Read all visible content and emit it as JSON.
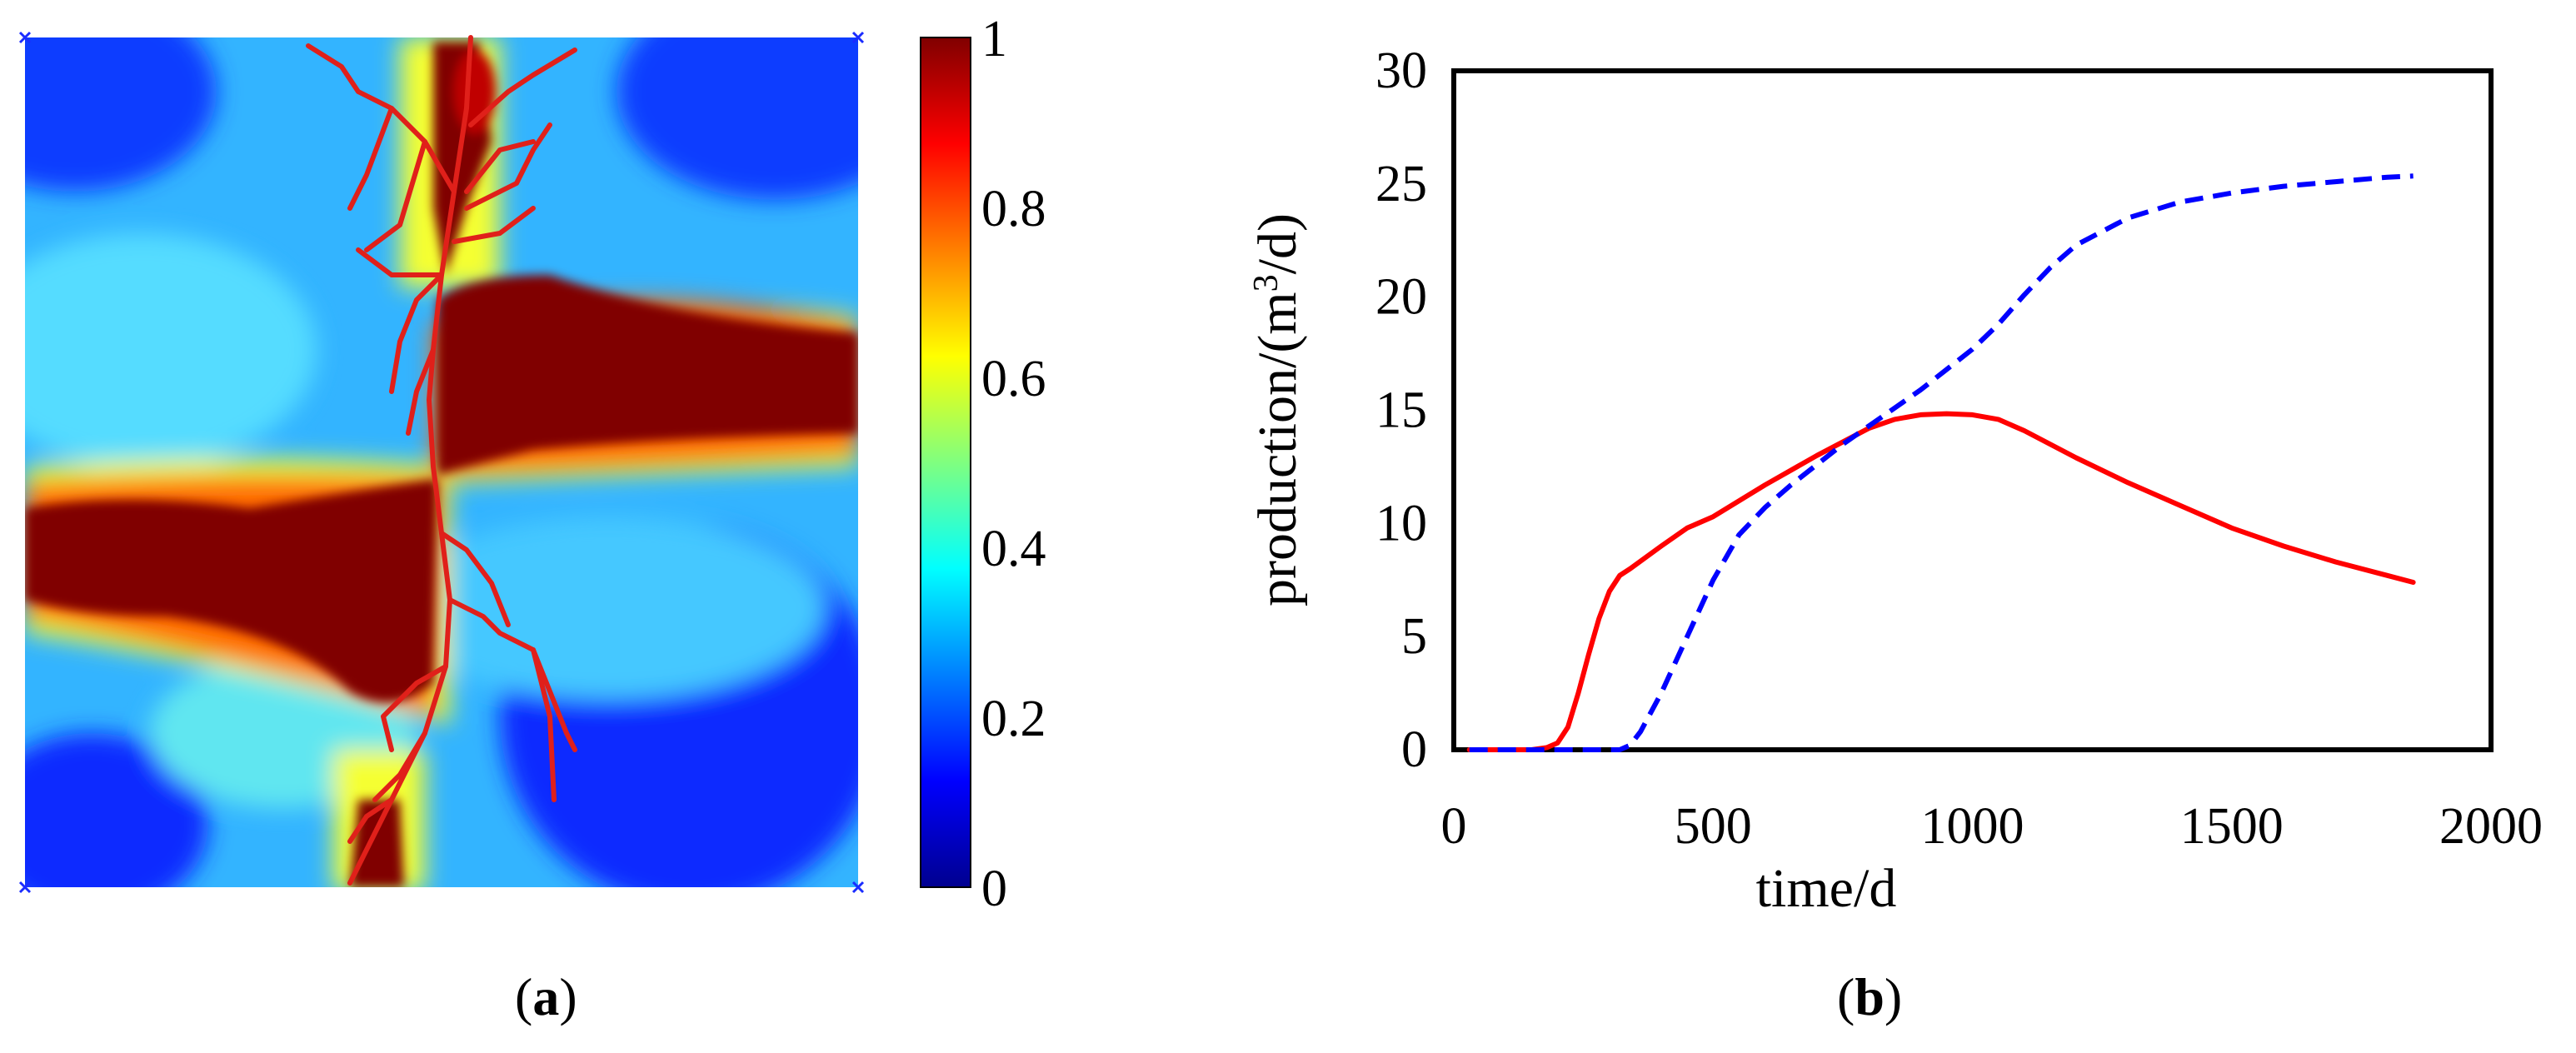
{
  "panel_a": {
    "caption_letter": "a",
    "colormap": "jet",
    "colorbar_ticks": [
      "1",
      "0.8",
      "0.6",
      "0.4",
      "0.2",
      "0"
    ],
    "colorbar_range": [
      0,
      1
    ]
  },
  "panel_b": {
    "caption_letter": "b"
  },
  "chart_data": [
    {
      "type": "heatmap",
      "title": "",
      "colormap": "jet",
      "value_range": [
        0,
        1
      ],
      "colorbar_ticks": [
        1,
        0.8,
        0.6,
        0.4,
        0.2,
        0
      ],
      "grid_resolution": "approximately 60 x 60 cells",
      "description_of_values": "Two saturated (value 1) bands cross at a central fracture; upper-right band and lower-left band; blue (near 0) corners",
      "overlay": "red branching fracture network"
    },
    {
      "type": "line",
      "title": "",
      "xlabel": "time/d",
      "ylabel_prefix": "production/(m",
      "ylabel_sup": "3",
      "ylabel_suffix": "/d)",
      "xlim": [
        0,
        2000
      ],
      "ylim": [
        0,
        30
      ],
      "xticks": [
        0,
        500,
        1000,
        1500,
        2000
      ],
      "yticks": [
        0,
        5,
        10,
        15,
        20,
        25,
        30
      ],
      "series": [
        {
          "name": "solid red",
          "color": "#ff0000",
          "style": "solid",
          "x": [
            30,
            100,
            150,
            180,
            200,
            220,
            240,
            260,
            280,
            300,
            320,
            340,
            400,
            450,
            500,
            600,
            700,
            800,
            850,
            900,
            950,
            1000,
            1050,
            1100,
            1200,
            1300,
            1400,
            1500,
            1600,
            1700,
            1800,
            1850
          ],
          "y": [
            0,
            0,
            0,
            0.1,
            0.3,
            1.0,
            2.5,
            4.2,
            5.8,
            7.0,
            7.7,
            8.0,
            9.0,
            9.8,
            10.3,
            11.7,
            13.0,
            14.2,
            14.6,
            14.8,
            14.85,
            14.8,
            14.6,
            14.1,
            12.9,
            11.8,
            10.8,
            9.8,
            9.0,
            8.3,
            7.7,
            7.4
          ]
        },
        {
          "name": "dashed blue",
          "color": "#0000ff",
          "style": "dashed",
          "x": [
            30,
            150,
            250,
            320,
            340,
            360,
            400,
            450,
            500,
            550,
            600,
            650,
            700,
            750,
            800,
            850,
            900,
            950,
            1000,
            1050,
            1100,
            1150,
            1200,
            1300,
            1400,
            1500,
            1600,
            1700,
            1800,
            1850
          ],
          "y": [
            0,
            0,
            0,
            0,
            0.2,
            0.8,
            2.5,
            5.0,
            7.5,
            9.5,
            10.7,
            11.7,
            12.6,
            13.5,
            14.3,
            15.1,
            15.9,
            16.8,
            17.7,
            18.8,
            20.1,
            21.3,
            22.3,
            23.5,
            24.2,
            24.6,
            24.9,
            25.1,
            25.3,
            25.35
          ]
        }
      ]
    }
  ]
}
